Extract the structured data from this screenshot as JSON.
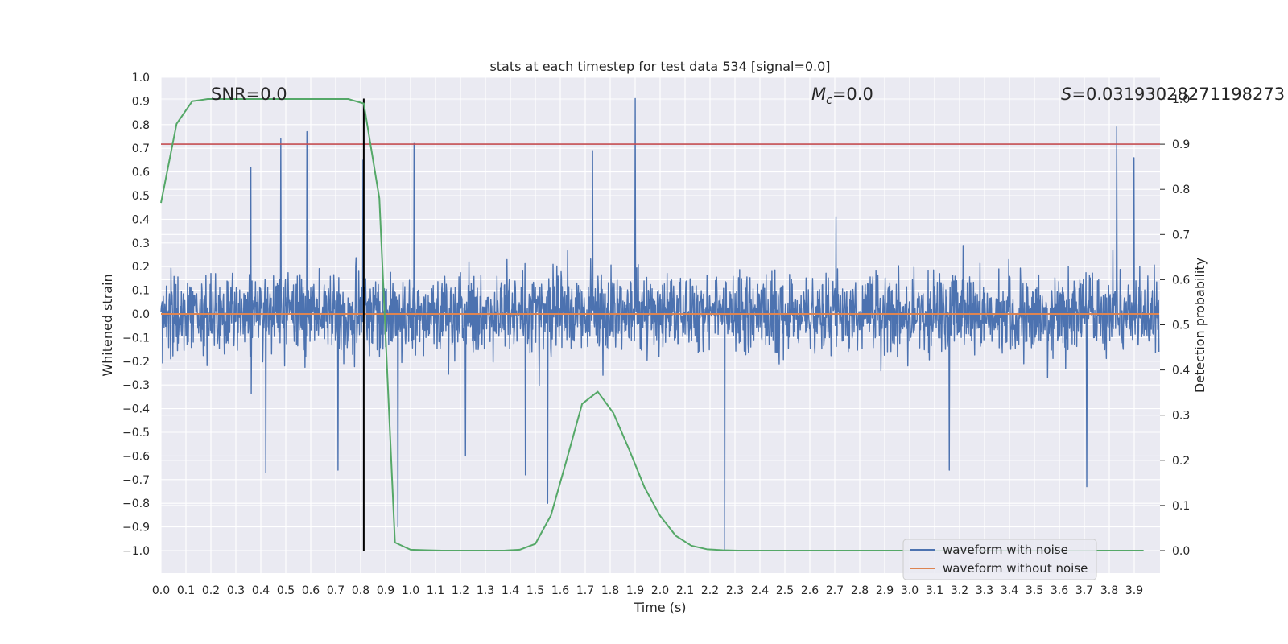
{
  "chart_data": {
    "type": "line",
    "title": "stats at each timestep for test data 534 [signal=0.0]",
    "xlabel": "Time (s)",
    "ylabel_left": "Whitened strain",
    "ylabel_right": "Detection probability",
    "xlim": [
      0.0,
      4.0
    ],
    "ylim_left": [
      -1.09,
      1.0
    ],
    "ylim_right": [
      -0.048,
      1.048
    ],
    "grid": true,
    "x_ticks": [
      "0.0",
      "0.1",
      "0.2",
      "0.3",
      "0.4",
      "0.5",
      "0.6",
      "0.7",
      "0.8",
      "0.9",
      "1.0",
      "1.1",
      "1.2",
      "1.3",
      "1.4",
      "1.5",
      "1.6",
      "1.7",
      "1.8",
      "1.9",
      "2.0",
      "2.1",
      "2.2",
      "2.3",
      "2.4",
      "2.5",
      "2.6",
      "2.7",
      "2.8",
      "2.9",
      "3.0",
      "3.1",
      "3.2",
      "3.3",
      "3.4",
      "3.5",
      "3.6",
      "3.7",
      "3.8",
      "3.9"
    ],
    "y_ticks_left": [
      "−1.0",
      "−0.9",
      "−0.8",
      "−0.7",
      "−0.6",
      "−0.5",
      "−0.4",
      "−0.3",
      "−0.2",
      "−0.1",
      "0.0",
      "0.1",
      "0.2",
      "0.3",
      "0.4",
      "0.5",
      "0.6",
      "0.7",
      "0.8",
      "0.9",
      "1.0"
    ],
    "y_ticks_right": [
      "0.0",
      "0.1",
      "0.2",
      "0.3",
      "0.4",
      "0.5",
      "0.6",
      "0.7",
      "0.8",
      "0.9",
      "1.0"
    ],
    "annotations": {
      "snr": "SNR=0.0",
      "mc_symbol": "M",
      "mc_subscript": "c",
      "mc_value": "=0.0",
      "s_symbol": "S",
      "s_value": "=0.03193028271198273"
    },
    "series": [
      {
        "name": "waveform with noise",
        "color": "#4c72b0",
        "axis": "left",
        "description": "dense whitened noise, roughly ±0.3 typical, peaks up to ±0.9",
        "spikes": [
          {
            "x": 0.48,
            "y": 0.74
          },
          {
            "x": 0.585,
            "y": 0.77
          },
          {
            "x": 0.36,
            "y": 0.62
          },
          {
            "x": 0.81,
            "y": 0.65
          },
          {
            "x": 1.015,
            "y": 0.72
          },
          {
            "x": 1.9,
            "y": 0.91
          },
          {
            "x": 1.73,
            "y": 0.69
          },
          {
            "x": 3.83,
            "y": 0.79
          },
          {
            "x": 3.9,
            "y": 0.66
          },
          {
            "x": 0.95,
            "y": -0.9
          },
          {
            "x": 1.55,
            "y": -0.8
          },
          {
            "x": 2.26,
            "y": -1.0
          },
          {
            "x": 3.71,
            "y": -0.73
          },
          {
            "x": 0.42,
            "y": -0.67
          },
          {
            "x": 0.71,
            "y": -0.66
          },
          {
            "x": 1.22,
            "y": -0.6
          },
          {
            "x": 1.46,
            "y": -0.68
          },
          {
            "x": 3.16,
            "y": -0.66
          }
        ]
      },
      {
        "name": "waveform without noise",
        "color": "#dd8452",
        "axis": "left",
        "x": [
          0.0,
          4.0
        ],
        "y": [
          0.0,
          0.0
        ]
      },
      {
        "name": "",
        "color": "#55a868",
        "axis": "right",
        "x": [
          0.0,
          0.0625,
          0.125,
          0.1875,
          0.25,
          0.3125,
          0.375,
          0.4375,
          0.5,
          0.5625,
          0.625,
          0.6875,
          0.75,
          0.8125,
          0.875,
          0.9375,
          1.0,
          1.0625,
          1.125,
          1.1875,
          1.25,
          1.3125,
          1.375,
          1.4375,
          1.5,
          1.5625,
          1.625,
          1.6875,
          1.75,
          1.8125,
          1.875,
          1.9375,
          2.0,
          2.0625,
          2.125,
          2.1875,
          2.25,
          2.3125,
          2.375,
          2.4375,
          2.5,
          2.5625,
          2.625,
          2.6875,
          2.75,
          2.8125,
          2.875,
          2.9375,
          3.0,
          3.0625,
          3.125,
          3.1875,
          3.25,
          3.3125,
          3.375,
          3.4375,
          3.5,
          3.5625,
          3.625,
          3.6875,
          3.75,
          3.8125,
          3.875,
          3.9375
        ],
        "y": [
          0.77,
          0.945,
          0.995,
          1.0,
          1.0,
          1.0,
          1.0,
          1.0,
          1.0,
          1.0,
          1.0,
          1.0,
          1.0,
          0.99,
          0.78,
          0.018,
          0.002,
          0.001,
          0.0,
          0.0,
          0.0,
          0.0,
          0.0,
          0.002,
          0.015,
          0.078,
          0.2,
          0.325,
          0.352,
          0.305,
          0.225,
          0.14,
          0.077,
          0.033,
          0.011,
          0.003,
          0.001,
          0.0,
          0.0,
          0.0,
          0.0,
          0.0,
          0.0,
          0.0,
          0.0,
          0.0,
          0.0,
          0.0,
          0.0,
          0.0,
          0.0,
          0.0,
          0.0,
          0.0,
          0.0,
          0.0,
          0.0,
          0.0,
          0.0,
          0.0,
          0.0,
          0.0,
          0.0,
          0.0
        ]
      }
    ],
    "threshold_line": {
      "axis": "right",
      "value": 0.9,
      "color": "#c44e52"
    },
    "marker_line": {
      "x": 0.8125,
      "y_from": -1.0,
      "y_to": 0.91,
      "color": "#000000"
    },
    "legend": {
      "placement": "lower-right",
      "entries": [
        {
          "label": "waveform with noise",
          "color": "#4c72b0"
        },
        {
          "label": "waveform without noise",
          "color": "#dd8452"
        }
      ]
    }
  },
  "colors": {
    "plot_background": "#eaeaf2",
    "grid": "#ffffff",
    "text": "#262626"
  }
}
